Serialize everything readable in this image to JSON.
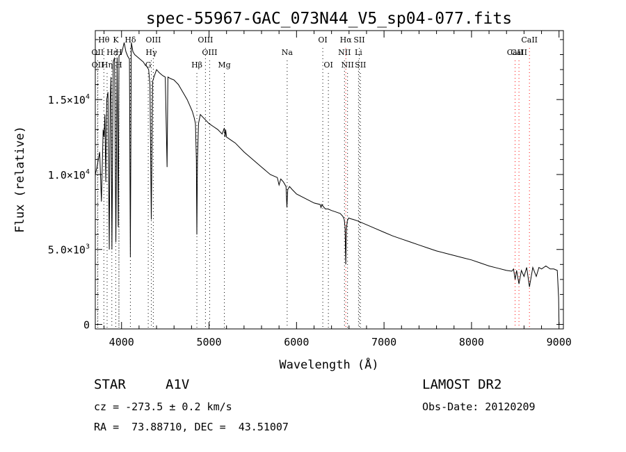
{
  "chart_data": {
    "type": "line",
    "title": "spec-55967-GAC_073N44_V5_sp04-077.fits",
    "xlabel": "Wavelength (Å)",
    "ylabel": "Flux (relative)",
    "xlim": [
      3700,
      9050
    ],
    "ylim": [
      -300,
      19600
    ],
    "xticks": [
      4000,
      5000,
      6000,
      7000,
      8000,
      9000
    ],
    "xtick_labels": [
      "4000",
      "5000",
      "6000",
      "7000",
      "8000",
      "9000"
    ],
    "yticks": [
      0,
      5000,
      10000,
      15000
    ],
    "ytick_labels": [
      {
        "mantissa": "0",
        "exp": ""
      },
      {
        "mantissa": "5.0×10",
        "exp": "3"
      },
      {
        "mantissa": "1.0×10",
        "exp": "4"
      },
      {
        "mantissa": "1.5×10",
        "exp": "4"
      }
    ],
    "grid": false,
    "legend": "none",
    "series": [
      {
        "color": "#000000",
        "x": [
          3700,
          3720,
          3750,
          3770,
          3790,
          3800,
          3810,
          3820,
          3830,
          3845,
          3860,
          3870,
          3880,
          3890,
          3905,
          3920,
          3935,
          3950,
          3962,
          3970,
          3980,
          3995,
          4010,
          4030,
          4050,
          4070,
          4090,
          4101,
          4112,
          4130,
          4150,
          4170,
          4190,
          4210,
          4230,
          4250,
          4270,
          4290,
          4310,
          4325,
          4340,
          4355,
          4370,
          4400,
          4430,
          4470,
          4500,
          4520,
          4530,
          4560,
          4600,
          4650,
          4700,
          4750,
          4780,
          4810,
          4830,
          4845,
          4855,
          4861,
          4868,
          4880,
          4900,
          4950,
          5000,
          5050,
          5100,
          5150,
          5175,
          5183,
          5190,
          5200,
          5250,
          5300,
          5400,
          5500,
          5600,
          5700,
          5780,
          5800,
          5820,
          5850,
          5880,
          5890,
          5900,
          5920,
          5950,
          6000,
          6100,
          6200,
          6270,
          6280,
          6290,
          6300,
          6330,
          6360,
          6400,
          6450,
          6500,
          6530,
          6545,
          6555,
          6563,
          6570,
          6580,
          6595,
          6620,
          6650,
          6700,
          6800,
          6900,
          7000,
          7100,
          7200,
          7300,
          7400,
          7500,
          7600,
          7700,
          7800,
          7900,
          8000,
          8100,
          8200,
          8300,
          8400,
          8460,
          8480,
          8498,
          8515,
          8542,
          8570,
          8600,
          8630,
          8662,
          8700,
          8740,
          8770,
          8800,
          8850,
          8900,
          8940,
          8980,
          8995,
          9000
        ],
        "y": [
          10000,
          10500,
          11500,
          8200,
          13000,
          12500,
          14000,
          9500,
          15000,
          15500,
          5000,
          15000,
          16500,
          5000,
          17500,
          17800,
          5500,
          17800,
          6500,
          17900,
          18000,
          18000,
          18300,
          18800,
          18200,
          17900,
          17700,
          4500,
          18800,
          18200,
          18000,
          17900,
          17800,
          17700,
          17600,
          17500,
          17300,
          17200,
          17000,
          16000,
          7000,
          16200,
          16500,
          17000,
          16800,
          16600,
          16500,
          10500,
          16500,
          16400,
          16300,
          16000,
          15500,
          15000,
          14600,
          14200,
          13800,
          13400,
          11000,
          6000,
          11000,
          13400,
          14000,
          13700,
          13400,
          13200,
          13000,
          12700,
          13100,
          12500,
          13000,
          12500,
          12300,
          12100,
          11500,
          11000,
          10500,
          10000,
          9800,
          9300,
          9700,
          9500,
          9200,
          7800,
          9000,
          9200,
          9000,
          8700,
          8400,
          8100,
          8000,
          7800,
          8000,
          7900,
          7700,
          7700,
          7600,
          7500,
          7400,
          7200,
          7000,
          6500,
          4000,
          6300,
          6900,
          7100,
          7050,
          7000,
          6900,
          6650,
          6400,
          6150,
          5900,
          5700,
          5500,
          5300,
          5100,
          4900,
          4750,
          4600,
          4450,
          4300,
          4100,
          3900,
          3750,
          3600,
          3550,
          3700,
          3000,
          3600,
          2700,
          3600,
          3200,
          3800,
          2500,
          3800,
          3200,
          3800,
          3700,
          3900,
          3700,
          3700,
          3600,
          1800,
          0
        ]
      }
    ],
    "line_markers": [
      {
        "name": "Hθ",
        "x": 3798,
        "row": 0,
        "color": "#000000"
      },
      {
        "name": "K",
        "x": 3934,
        "row": 0,
        "color": "#000000"
      },
      {
        "name": "Hδ",
        "x": 4101,
        "row": 0,
        "color": "#000000"
      },
      {
        "name": "OIII",
        "x": 4363,
        "row": 0,
        "color": "#000000"
      },
      {
        "name": "OIII",
        "x": 4959,
        "row": 0,
        "color": "#000000"
      },
      {
        "name": "OI",
        "x": 6300,
        "row": 0,
        "color": "#000000"
      },
      {
        "name": "Hα",
        "x": 6563,
        "row": 0,
        "color": "#ff0000"
      },
      {
        "name": "SII",
        "x": 6717,
        "row": 0,
        "color": "#000000"
      },
      {
        "name": "CaII",
        "x": 8662,
        "row": 0,
        "color": "#ff0000"
      },
      {
        "name": "OII",
        "x": 3727,
        "row": 1,
        "color": "#000000"
      },
      {
        "name": "Hε",
        "x": 3889,
        "row": 1,
        "color": "#000000"
      },
      {
        "name": "H",
        "x": 3970,
        "row": 1,
        "color": "#000000"
      },
      {
        "name": "Hγ",
        "x": 4340,
        "row": 1,
        "color": "#000000"
      },
      {
        "name": "OIII",
        "x": 5007,
        "row": 1,
        "color": "#000000"
      },
      {
        "name": "Na",
        "x": 5893,
        "row": 1,
        "color": "#000000"
      },
      {
        "name": "NII",
        "x": 6548,
        "row": 1,
        "color": "#000000"
      },
      {
        "name": "Li",
        "x": 6708,
        "row": 1,
        "color": "#000000"
      },
      {
        "name": "CaII",
        "x": 8542,
        "row": 1,
        "color": "#ff0000"
      },
      {
        "name": "OII",
        "x": 3729,
        "row": 2,
        "color": "#000000"
      },
      {
        "name": "Hη",
        "x": 3835,
        "row": 2,
        "color": "#000000"
      },
      {
        "name": "H",
        "x": 3970,
        "row": 2,
        "color": "#000000"
      },
      {
        "name": "G",
        "x": 4305,
        "row": 2,
        "color": "#000000"
      },
      {
        "name": "Hβ",
        "x": 4861,
        "row": 2,
        "color": "#000000"
      },
      {
        "name": "Mg",
        "x": 5175,
        "row": 2,
        "color": "#000000"
      },
      {
        "name": "OI",
        "x": 6364,
        "row": 2,
        "color": "#000000"
      },
      {
        "name": "NII",
        "x": 6583,
        "row": 2,
        "color": "#000000"
      },
      {
        "name": "SII",
        "x": 6731,
        "row": 2,
        "color": "#000000"
      },
      {
        "name": "CaII",
        "x": 8498,
        "row": 3,
        "color": "#ff0000"
      }
    ]
  },
  "info": {
    "object_class": "STAR",
    "subclass": "A1V",
    "survey": "LAMOST DR2",
    "cz": "cz = -273.5 ± 0.2 km/s",
    "obs_date": "Obs-Date: 20120209",
    "coords": "RA =  73.88710, DEC =  43.51007"
  }
}
